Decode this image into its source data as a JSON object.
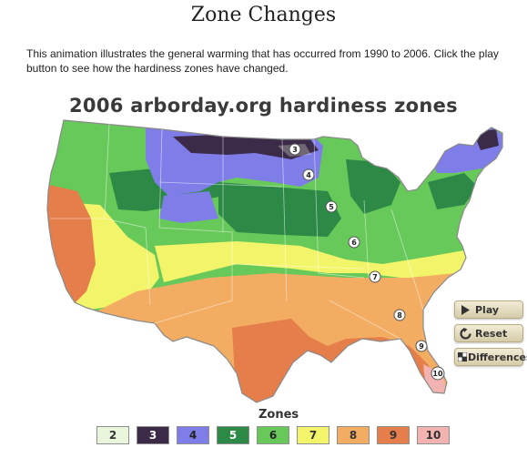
{
  "page": {
    "title": "Zone Changes",
    "intro": "This animation illustrates the general warming that has occurred from 1990 to 2006. Click the play button to see how the hardiness zones have changed."
  },
  "map": {
    "title": "2006 arborday.org hardiness zones",
    "markers": [
      "3",
      "4",
      "5",
      "6",
      "7",
      "8",
      "9",
      "10"
    ]
  },
  "controls": {
    "play": "Play",
    "reset": "Reset",
    "differences": "Differences"
  },
  "legend": {
    "label": "Zones",
    "zones": [
      {
        "zone": "2",
        "color": "#e9f6dc",
        "text": "#333333"
      },
      {
        "zone": "3",
        "color": "#3b2a48",
        "text": "#ffffff"
      },
      {
        "zone": "4",
        "color": "#7f7ee8",
        "text": "#222222"
      },
      {
        "zone": "5",
        "color": "#2d8a46",
        "text": "#ffffff"
      },
      {
        "zone": "6",
        "color": "#67c95a",
        "text": "#222222"
      },
      {
        "zone": "7",
        "color": "#f2f56a",
        "text": "#333333"
      },
      {
        "zone": "8",
        "color": "#f2ad62",
        "text": "#333333"
      },
      {
        "zone": "9",
        "color": "#e57e4b",
        "text": "#333333"
      },
      {
        "zone": "10",
        "color": "#f2b3b1",
        "text": "#333333"
      }
    ]
  }
}
